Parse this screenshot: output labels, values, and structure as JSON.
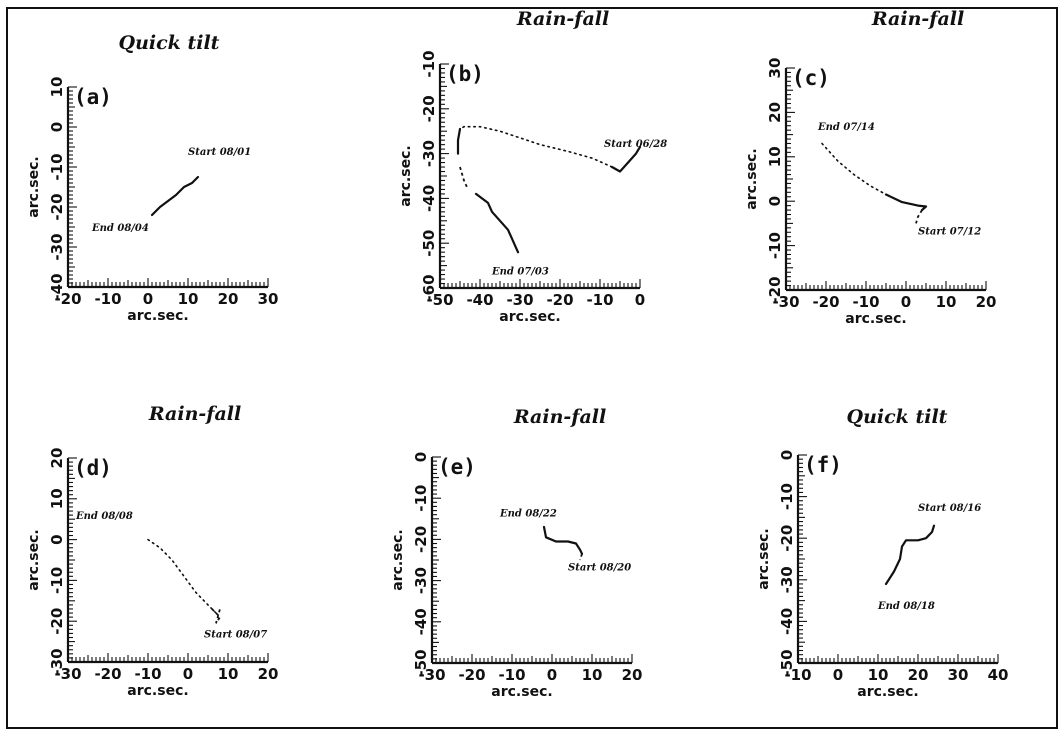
{
  "chart_data": [
    {
      "panel": "(a)",
      "title": "Quick tilt",
      "type": "line",
      "xlabel": "arc.sec.",
      "ylabel": "arc.sec.",
      "xlim": [
        -20,
        30
      ],
      "ylim": [
        -40,
        10
      ],
      "xstep": 10,
      "ystep": 10,
      "series": [
        {
          "style": "solid",
          "points": [
            [
              1,
              -22
            ],
            [
              3,
              -20
            ],
            [
              5,
              -18.5
            ],
            [
              7,
              -17
            ],
            [
              9,
              -15
            ],
            [
              11,
              -14
            ],
            [
              12,
              -13
            ],
            [
              12.5,
              -12.5
            ]
          ]
        }
      ],
      "annotations": [
        {
          "text": "Start 08/01",
          "x": 10,
          "y": -7,
          "anchor": "start"
        },
        {
          "text": "End 08/04",
          "x": -14,
          "y": -26,
          "anchor": "start"
        }
      ]
    },
    {
      "panel": "(b)",
      "title": "Rain-fall",
      "type": "line",
      "xlabel": "arc.sec.",
      "ylabel": "arc.sec.",
      "xlim": [
        -50,
        0
      ],
      "ylim": [
        -60,
        -10
      ],
      "xstep": 10,
      "ystep": 10,
      "series": [
        {
          "style": "dotted",
          "points": [
            [
              -7,
              -33
            ],
            [
              -12,
              -31
            ],
            [
              -18,
              -29.5
            ],
            [
              -25,
              -28
            ],
            [
              -30,
              -26.5
            ],
            [
              -35,
              -25
            ],
            [
              -40,
              -24
            ],
            [
              -44,
              -24
            ],
            [
              -45,
              -24.5
            ]
          ]
        },
        {
          "style": "solid",
          "points": [
            [
              -45,
              -24.5
            ],
            [
              -45.5,
              -27
            ],
            [
              -45.5,
              -30
            ]
          ]
        },
        {
          "style": "dashed",
          "points": [
            [
              -45,
              -33
            ],
            [
              -44,
              -36
            ],
            [
              -43,
              -38
            ]
          ]
        },
        {
          "style": "solid",
          "points": [
            [
              -41,
              -39
            ],
            [
              -38,
              -41
            ],
            [
              -37,
              -43
            ],
            [
              -35,
              -45
            ],
            [
              -33,
              -47
            ],
            [
              -32,
              -49
            ],
            [
              -31,
              -51
            ],
            [
              -30.5,
              -52
            ]
          ]
        },
        {
          "style": "solid",
          "points": [
            [
              -7,
              -33
            ],
            [
              -5,
              -34
            ],
            [
              -3,
              -32
            ],
            [
              -1,
              -30
            ],
            [
              0,
              -28.5
            ]
          ]
        }
      ],
      "annotations": [
        {
          "text": "Start 06/28",
          "x": -9,
          "y": -28.5,
          "anchor": "start"
        },
        {
          "text": "End 07/03",
          "x": -37,
          "y": -57,
          "anchor": "start"
        }
      ]
    },
    {
      "panel": "(c)",
      "title": "Rain-fall",
      "type": "line",
      "xlabel": "arc.sec.",
      "ylabel": "arc.sec.",
      "xlim": [
        -30,
        20
      ],
      "ylim": [
        -20,
        30
      ],
      "xstep": 10,
      "ystep": 10,
      "series": [
        {
          "style": "dotted",
          "points": [
            [
              -21,
              13
            ],
            [
              -17,
              9
            ],
            [
              -13,
              6
            ],
            [
              -9,
              3.5
            ],
            [
              -5,
              1.5
            ]
          ]
        },
        {
          "style": "solid",
          "points": [
            [
              -5,
              1.5
            ],
            [
              -1,
              -0.2
            ],
            [
              3,
              -1
            ],
            [
              5,
              -1.2
            ],
            [
              4,
              -2
            ]
          ]
        },
        {
          "style": "dashed",
          "points": [
            [
              4,
              -2
            ],
            [
              3,
              -3.5
            ],
            [
              2.5,
              -5
            ]
          ]
        }
      ],
      "annotations": [
        {
          "text": "End 07/14",
          "x": -22,
          "y": 16,
          "anchor": "start"
        },
        {
          "text": "Start 07/12",
          "x": 3,
          "y": -7.5,
          "anchor": "start"
        }
      ]
    },
    {
      "panel": "(d)",
      "title": "Rain-fall",
      "type": "line",
      "xlabel": "arc.sec.",
      "ylabel": "arc.sec.",
      "xlim": [
        -30,
        20
      ],
      "ylim": [
        -30,
        20
      ],
      "xstep": 10,
      "ystep": 10,
      "series": [
        {
          "style": "dotted",
          "points": [
            [
              -10,
              0
            ],
            [
              -7,
              -2
            ],
            [
              -4,
              -5
            ],
            [
              -1,
              -9
            ],
            [
              2,
              -13
            ],
            [
              5,
              -16
            ],
            [
              7,
              -18
            ]
          ]
        },
        {
          "style": "dashed",
          "points": [
            [
              6,
              -17
            ],
            [
              8,
              -19
            ],
            [
              7,
              -20.5
            ],
            [
              8,
              -17
            ]
          ]
        }
      ],
      "annotations": [
        {
          "text": "End 08/08",
          "x": -28,
          "y": 5,
          "anchor": "start"
        },
        {
          "text": "Start 08/07",
          "x": 4,
          "y": -24,
          "anchor": "start"
        }
      ]
    },
    {
      "panel": "(e)",
      "title": "Rain-fall",
      "type": "line",
      "xlabel": "arc.sec.",
      "ylabel": "arc.sec.",
      "xlim": [
        -30,
        20
      ],
      "ylim": [
        -50,
        0
      ],
      "xstep": 10,
      "ystep": 10,
      "series": [
        {
          "style": "solid",
          "points": [
            [
              -2,
              -17
            ],
            [
              -1.5,
              -19.5
            ],
            [
              1,
              -20.5
            ],
            [
              4,
              -20.5
            ],
            [
              6,
              -21
            ],
            [
              7,
              -22.5
            ],
            [
              7.5,
              -23.5
            ]
          ]
        },
        {
          "style": "dashed",
          "points": [
            [
              7.5,
              -23.5
            ],
            [
              7,
              -25
            ]
          ]
        }
      ],
      "annotations": [
        {
          "text": "End 08/22",
          "x": -13,
          "y": -14.5,
          "anchor": "start"
        },
        {
          "text": "Start 08/20",
          "x": 4,
          "y": -27.5,
          "anchor": "start"
        }
      ]
    },
    {
      "panel": "(f)",
      "title": "Quick tilt",
      "type": "line",
      "xlabel": "arc.sec.",
      "ylabel": "arc.sec.",
      "xlim": [
        -10,
        40
      ],
      "ylim": [
        -50,
        0
      ],
      "xstep": 10,
      "ystep": 10,
      "series": [
        {
          "style": "solid",
          "points": [
            [
              12,
              -31
            ],
            [
              14,
              -28
            ],
            [
              15.5,
              -25
            ],
            [
              16,
              -22
            ],
            [
              17,
              -20.5
            ],
            [
              20,
              -20.5
            ],
            [
              22,
              -20
            ],
            [
              23.5,
              -18.5
            ],
            [
              24,
              -17
            ]
          ]
        }
      ],
      "annotations": [
        {
          "text": "Start 08/16",
          "x": 20,
          "y": -13.5,
          "anchor": "start"
        },
        {
          "text": "End 08/18",
          "x": 10,
          "y": -37,
          "anchor": "start"
        }
      ]
    }
  ]
}
